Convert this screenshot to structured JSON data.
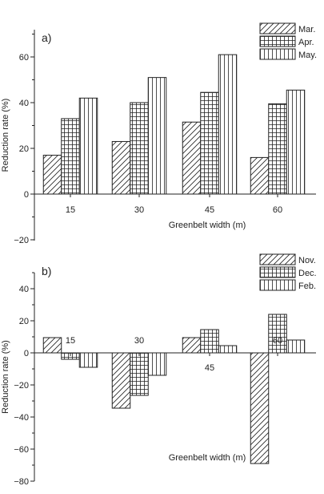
{
  "chart_data": [
    {
      "type": "bar",
      "panel_label": "a)",
      "categories": [
        "15",
        "30",
        "45",
        "60"
      ],
      "series": [
        {
          "name": "Mar.",
          "values": [
            17,
            23,
            31.5,
            16
          ],
          "pattern": "diagonal"
        },
        {
          "name": "Apr.",
          "values": [
            33,
            40,
            44.5,
            39.5
          ],
          "pattern": "grid"
        },
        {
          "name": "May.",
          "values": [
            42,
            51,
            61,
            45.5
          ],
          "pattern": "vertical"
        }
      ],
      "xlabel": "Greenbelt width (m)",
      "ylabel": "Reduction rate (%)",
      "ylim": [
        -20,
        70
      ],
      "yticks": [
        -20,
        0,
        20,
        40,
        60
      ],
      "tick_labels_position": "below-axis",
      "legend_position": "top-right"
    },
    {
      "type": "bar",
      "panel_label": "b)",
      "categories": [
        "15",
        "30",
        "45",
        "60"
      ],
      "series": [
        {
          "name": "Nov.",
          "values": [
            9.5,
            -34.5,
            9.5,
            -69
          ],
          "pattern": "diagonal"
        },
        {
          "name": "Dec.",
          "values": [
            -4,
            -26.5,
            14.5,
            24
          ],
          "pattern": "grid"
        },
        {
          "name": "Feb.",
          "values": [
            -9,
            -14,
            4.5,
            8
          ],
          "pattern": "vertical"
        }
      ],
      "xlabel": "Greenbelt width (m)",
      "ylabel": "Reduction rate (%)",
      "ylim": [
        -80,
        50
      ],
      "yticks": [
        -80,
        -60,
        -40,
        -20,
        0,
        20,
        40
      ],
      "tick_labels_position": "inside-plot",
      "legend_position": "top-right"
    }
  ]
}
